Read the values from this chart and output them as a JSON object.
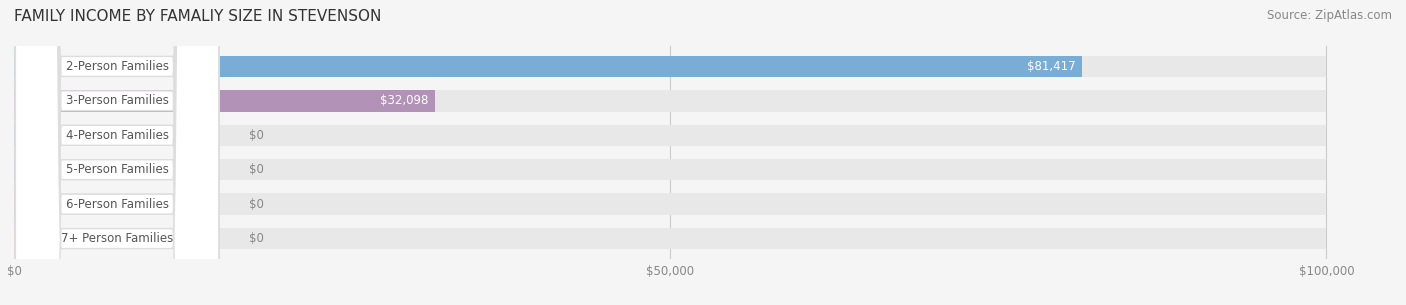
{
  "title": "FAMILY INCOME BY FAMALIY SIZE IN STEVENSON",
  "source": "Source: ZipAtlas.com",
  "categories": [
    "2-Person Families",
    "3-Person Families",
    "4-Person Families",
    "5-Person Families",
    "6-Person Families",
    "7+ Person Families"
  ],
  "values": [
    81417,
    32098,
    0,
    0,
    0,
    0
  ],
  "bar_colors": [
    "#7aadd6",
    "#b392b8",
    "#6dc4bc",
    "#a8a8d8",
    "#f490a0",
    "#f5c990"
  ],
  "label_colors": [
    "#7aadd6",
    "#b392b8",
    "#6dc4bc",
    "#a8a8d8",
    "#f490a0",
    "#f5c990"
  ],
  "value_labels": [
    "$81,417",
    "$32,098",
    "$0",
    "$0",
    "$0",
    "$0"
  ],
  "xlim": [
    0,
    100000
  ],
  "xticks": [
    0,
    50000,
    100000
  ],
  "xtick_labels": [
    "$0",
    "$50,000",
    "$100,000"
  ],
  "background_color": "#f5f5f5",
  "bar_bg_color": "#e8e8e8",
  "title_fontsize": 11,
  "source_fontsize": 8.5,
  "label_fontsize": 8.5,
  "value_fontsize": 8.5,
  "label_box_color": "#ffffff",
  "label_text_color": "#555555",
  "value_label_inside_color": "#ffffff",
  "value_label_outside_color": "#888888"
}
